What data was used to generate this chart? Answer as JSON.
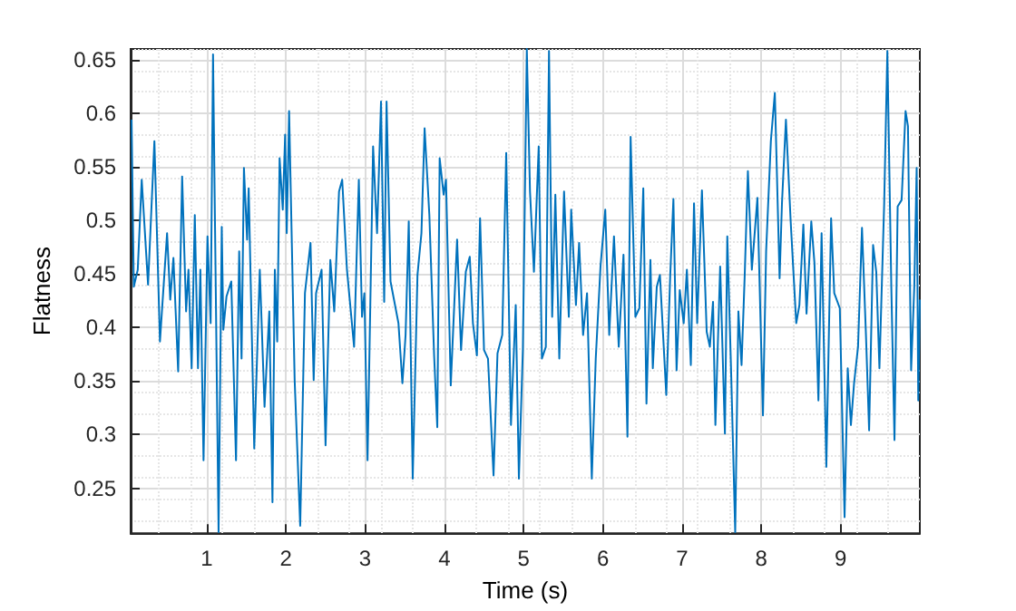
{
  "chart_data": {
    "type": "line",
    "xlabel": "Time (s)",
    "ylabel": "Flatness",
    "xlim": [
      0.04,
      10
    ],
    "xticks": [
      1,
      2,
      3,
      4,
      5,
      6,
      7,
      8,
      9
    ],
    "ylim": [
      0.208,
      0.66
    ],
    "yticks": [
      0.25,
      0.3,
      0.35,
      0.4,
      0.45,
      0.5,
      0.55,
      0.6,
      0.65
    ],
    "grid": true,
    "marker": "none",
    "line_style": "solid",
    "series": [
      {
        "color": "#0072bd",
        "x": [
          0.052,
          0.08,
          0.13,
          0.18,
          0.26,
          0.34,
          0.41,
          0.5,
          0.54,
          0.58,
          0.64,
          0.69,
          0.74,
          0.77,
          0.81,
          0.85,
          0.89,
          0.92,
          0.96,
          1.01,
          1.05,
          1.08,
          1.15,
          1.19,
          1.21,
          1.25,
          1.31,
          1.37,
          1.41,
          1.44,
          1.47,
          1.51,
          1.53,
          1.6,
          1.67,
          1.73,
          1.79,
          1.83,
          1.86,
          1.89,
          1.92,
          1.96,
          1.99,
          2.01,
          2.04,
          2.11,
          2.18,
          2.24,
          2.31,
          2.35,
          2.38,
          2.45,
          2.5,
          2.56,
          2.61,
          2.67,
          2.71,
          2.77,
          2.86,
          2.92,
          2.96,
          2.99,
          3.03,
          3.1,
          3.15,
          3.2,
          3.24,
          3.27,
          3.32,
          3.42,
          3.47,
          3.51,
          3.55,
          3.6,
          3.66,
          3.71,
          3.75,
          3.81,
          3.87,
          3.91,
          3.94,
          3.99,
          4.02,
          4.08,
          4.16,
          4.21,
          4.27,
          4.32,
          4.36,
          4.41,
          4.45,
          4.5,
          4.55,
          4.62,
          4.67,
          4.73,
          4.78,
          4.84,
          4.9,
          4.94,
          4.99,
          5.04,
          5.08,
          5.13,
          5.19,
          5.23,
          5.28,
          5.32,
          5.36,
          5.4,
          5.45,
          5.51,
          5.57,
          5.6,
          5.66,
          5.7,
          5.75,
          5.8,
          5.86,
          5.91,
          5.97,
          6.03,
          6.08,
          6.14,
          6.2,
          6.26,
          6.31,
          6.35,
          6.41,
          6.46,
          6.51,
          6.55,
          6.6,
          6.63,
          6.68,
          6.72,
          6.8,
          6.85,
          6.89,
          6.93,
          6.97,
          7.02,
          7.06,
          7.11,
          7.15,
          7.19,
          7.25,
          7.31,
          7.35,
          7.39,
          7.42,
          7.48,
          7.54,
          7.57,
          7.62,
          7.67,
          7.71,
          7.75,
          7.79,
          7.83,
          7.88,
          7.95,
          8.02,
          8.06,
          8.12,
          8.17,
          8.23,
          8.26,
          8.31,
          8.37,
          8.44,
          8.48,
          8.53,
          8.57,
          8.63,
          8.67,
          8.72,
          8.76,
          8.82,
          8.88,
          8.92,
          8.99,
          9.05,
          9.09,
          9.13,
          9.17,
          9.22,
          9.27,
          9.32,
          9.36,
          9.41,
          9.45,
          9.49,
          9.55,
          9.59,
          9.64,
          9.68,
          9.72,
          9.77,
          9.82,
          9.85,
          9.89,
          9.93,
          9.96,
          9.98,
          10.0
        ],
        "values": [
          0.594,
          0.438,
          0.454,
          0.538,
          0.44,
          0.574,
          0.387,
          0.488,
          0.426,
          0.465,
          0.359,
          0.541,
          0.415,
          0.454,
          0.362,
          0.505,
          0.362,
          0.454,
          0.276,
          0.485,
          0.404,
          0.655,
          0.209,
          0.494,
          0.398,
          0.429,
          0.443,
          0.276,
          0.471,
          0.371,
          0.549,
          0.482,
          0.53,
          0.287,
          0.454,
          0.326,
          0.415,
          0.237,
          0.454,
          0.387,
          0.558,
          0.51,
          0.58,
          0.488,
          0.602,
          0.351,
          0.215,
          0.432,
          0.479,
          0.351,
          0.432,
          0.454,
          0.29,
          0.463,
          0.415,
          0.527,
          0.538,
          0.454,
          0.382,
          0.538,
          0.41,
          0.432,
          0.276,
          0.569,
          0.488,
          0.611,
          0.424,
          0.611,
          0.443,
          0.404,
          0.348,
          0.393,
          0.499,
          0.259,
          0.449,
          0.488,
          0.586,
          0.505,
          0.374,
          0.307,
          0.558,
          0.524,
          0.538,
          0.346,
          0.482,
          0.379,
          0.452,
          0.466,
          0.404,
          0.374,
          0.502,
          0.379,
          0.371,
          0.262,
          0.376,
          0.393,
          0.563,
          0.309,
          0.421,
          0.259,
          0.379,
          0.66,
          0.527,
          0.452,
          0.569,
          0.371,
          0.382,
          0.658,
          0.41,
          0.524,
          0.371,
          0.527,
          0.41,
          0.51,
          0.421,
          0.479,
          0.393,
          0.432,
          0.259,
          0.371,
          0.457,
          0.51,
          0.393,
          0.485,
          0.382,
          0.468,
          0.298,
          0.578,
          0.41,
          0.418,
          0.53,
          0.329,
          0.463,
          0.362,
          0.438,
          0.449,
          0.337,
          0.449,
          0.52,
          0.36,
          0.435,
          0.404,
          0.454,
          0.365,
          0.516,
          0.404,
          0.528,
          0.396,
          0.382,
          0.424,
          0.309,
          0.457,
          0.301,
          0.485,
          0.354,
          0.209,
          0.415,
          0.365,
          0.449,
          0.546,
          0.454,
          0.521,
          0.318,
          0.471,
          0.574,
          0.619,
          0.446,
          0.516,
          0.594,
          0.499,
          0.404,
          0.421,
          0.496,
          0.413,
          0.499,
          0.46,
          0.332,
          0.488,
          0.27,
          0.502,
          0.432,
          0.418,
          0.223,
          0.362,
          0.309,
          0.348,
          0.382,
          0.493,
          0.393,
          0.304,
          0.477,
          0.452,
          0.362,
          0.516,
          0.658,
          0.438,
          0.295,
          0.513,
          0.519,
          0.602,
          0.588,
          0.36,
          0.438,
          0.549,
          0.332,
          0.426
        ]
      }
    ]
  }
}
